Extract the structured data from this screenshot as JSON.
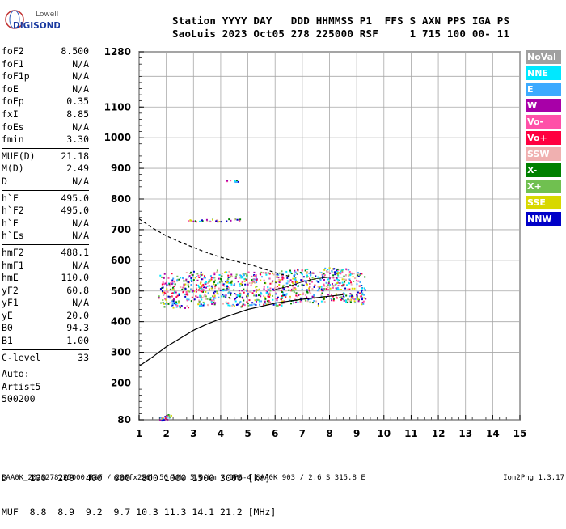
{
  "logo": {
    "line1": "Lowell",
    "line2": "DIGISONDE"
  },
  "header": {
    "labels": "Station YYYY DAY   DDD HHMMSS P1  FFS S AXN PPS IGA PS",
    "values": "SaoLuis 2023 Oct05 278 225000 RSF     1 715 100 00- 11"
  },
  "params_group1": [
    {
      "name": "foF2",
      "value": "8.500"
    },
    {
      "name": "foF1",
      "value": "N/A"
    },
    {
      "name": "foF1p",
      "value": "N/A"
    },
    {
      "name": "foE",
      "value": "N/A"
    },
    {
      "name": "foEp",
      "value": "0.35"
    },
    {
      "name": "fxI",
      "value": "8.85"
    },
    {
      "name": "foEs",
      "value": "N/A"
    },
    {
      "name": "fmin",
      "value": "3.30"
    }
  ],
  "params_group2": [
    {
      "name": "MUF(D)",
      "value": "21.18"
    },
    {
      "name": "M(D)",
      "value": "2.49"
    },
    {
      "name": "D",
      "value": "N/A"
    }
  ],
  "params_group3": [
    {
      "name": "h`F",
      "value": "495.0"
    },
    {
      "name": "h`F2",
      "value": "495.0"
    },
    {
      "name": "h`E",
      "value": "N/A"
    },
    {
      "name": "h`Es",
      "value": "N/A"
    }
  ],
  "params_group4": [
    {
      "name": "hmF2",
      "value": "488.1"
    },
    {
      "name": "hmF1",
      "value": "N/A"
    },
    {
      "name": "hmE",
      "value": "110.0"
    },
    {
      "name": "yF2",
      "value": "60.8"
    },
    {
      "name": "yF1",
      "value": "N/A"
    },
    {
      "name": "yE",
      "value": "20.0"
    },
    {
      "name": "B0",
      "value": "94.3"
    },
    {
      "name": "B1",
      "value": "1.00"
    }
  ],
  "params_group5": [
    {
      "name": "C-level",
      "value": "33"
    }
  ],
  "autoscaling": {
    "label": "Auto:",
    "name": "Artist5",
    "version": "500200"
  },
  "legend": [
    {
      "label": "NoVal",
      "color": "#A0A0A0"
    },
    {
      "label": "NNE",
      "color": "#00E8FF"
    },
    {
      "label": "E",
      "color": "#3CAAFF"
    },
    {
      "label": "W",
      "color": "#A800A8"
    },
    {
      "label": "Vo-",
      "color": "#FF50A8"
    },
    {
      "label": "Vo+",
      "color": "#FF0040"
    },
    {
      "label": "SSW",
      "color": "#F0B0B0"
    },
    {
      "label": "X-",
      "color": "#008000"
    },
    {
      "label": "X+",
      "color": "#70C050"
    },
    {
      "label": "SSE",
      "color": "#D8D800"
    },
    {
      "label": "NNW",
      "color": "#0000C8"
    }
  ],
  "footer": {
    "d_row": "D    100  200  400  600  800 1000 1500 3000 [km]",
    "muf_row": "MUF  8.8  8.9  9.2  9.7 10.3 11.3 14.1 21.2 [MHz]"
  },
  "bottom": {
    "left": "SAA0K_2023278225000.RSF / 280fx256h 50 kHz 5.0 km / DPS-4 SAA0K 903 / 2.6 S 315.8 E",
    "right": "Ion2Png 1.3.17"
  },
  "chart_data": {
    "type": "scatter",
    "title": "",
    "xlabel": "",
    "ylabel": "",
    "x_unit": "MHz",
    "y_unit": "km",
    "xlim": [
      1,
      15
    ],
    "ylim": [
      80,
      1280
    ],
    "x_ticks": [
      1,
      2,
      3,
      4,
      5,
      6,
      7,
      8,
      9,
      10,
      11,
      12,
      13,
      14,
      15
    ],
    "y_ticks": [
      80,
      200,
      300,
      400,
      500,
      600,
      700,
      800,
      900,
      1000,
      1100,
      1280
    ],
    "y_grid_lines": [
      80,
      200,
      300,
      400,
      500,
      600,
      700,
      800,
      900,
      1000,
      1100,
      1200,
      1280
    ],
    "grid": true,
    "series": [
      {
        "name": "F2 trace (O-mode)",
        "points": [
          [
            2.0,
            505
          ],
          [
            2.5,
            500
          ],
          [
            3.0,
            512
          ],
          [
            3.5,
            508
          ],
          [
            4.0,
            515
          ],
          [
            4.5,
            505
          ],
          [
            5.0,
            510
          ],
          [
            5.5,
            512
          ],
          [
            6.0,
            508
          ],
          [
            6.5,
            515
          ],
          [
            7.0,
            520
          ],
          [
            7.5,
            510
          ],
          [
            8.0,
            525
          ],
          [
            8.5,
            520
          ],
          [
            9.0,
            510
          ]
        ]
      },
      {
        "name": "Es cluster",
        "points": [
          [
            1.8,
            85
          ],
          [
            1.9,
            88
          ],
          [
            2.0,
            90
          ],
          [
            2.1,
            92
          ]
        ]
      },
      {
        "name": "Multi-hop",
        "points": [
          [
            3.0,
            730
          ],
          [
            3.5,
            732
          ],
          [
            4.0,
            730
          ],
          [
            4.5,
            735
          ],
          [
            4.4,
            860
          ]
        ]
      }
    ],
    "curves": [
      {
        "name": "Profile (solid)",
        "style": "solid",
        "points": [
          [
            1.0,
            255
          ],
          [
            1.5,
            285
          ],
          [
            2.0,
            318
          ],
          [
            2.5,
            345
          ],
          [
            3.0,
            372
          ],
          [
            3.5,
            392
          ],
          [
            4.0,
            410
          ],
          [
            4.5,
            425
          ],
          [
            5.0,
            440
          ],
          [
            5.5,
            450
          ],
          [
            6.0,
            460
          ],
          [
            6.5,
            467
          ],
          [
            7.0,
            473
          ],
          [
            7.5,
            478
          ],
          [
            8.0,
            483
          ],
          [
            8.5,
            488
          ]
        ]
      },
      {
        "name": "Profile (dashed)",
        "style": "dashed",
        "points": [
          [
            1.0,
            735
          ],
          [
            1.5,
            705
          ],
          [
            2.0,
            680
          ],
          [
            2.5,
            660
          ],
          [
            3.0,
            642
          ],
          [
            3.5,
            625
          ],
          [
            4.0,
            610
          ],
          [
            4.5,
            598
          ],
          [
            5.0,
            588
          ],
          [
            5.5,
            575
          ],
          [
            6.0,
            560
          ],
          [
            6.5,
            548
          ]
        ]
      },
      {
        "name": "Profile (thin)",
        "style": "thin",
        "points": [
          [
            6.0,
            505
          ],
          [
            6.5,
            515
          ],
          [
            7.0,
            530
          ],
          [
            7.5,
            540
          ],
          [
            8.0,
            545
          ],
          [
            8.5,
            545
          ]
        ]
      }
    ]
  }
}
